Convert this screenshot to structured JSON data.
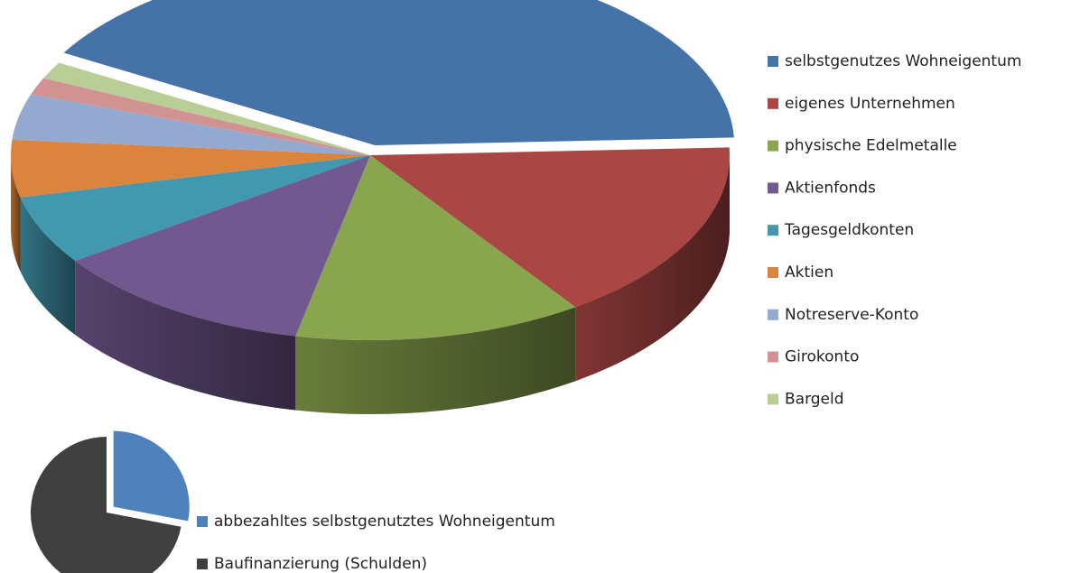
{
  "chart_data": [
    {
      "type": "pie3d",
      "categories": [
        "selbstgenutzes Wohneigentum",
        "eigenes Unternehmen",
        "physische Edelmetalle",
        "Aktienfonds",
        "Tagesgeldkonten",
        "Aktien",
        "Notreserve-Konto",
        "Girokonto",
        "Bargeld"
      ],
      "values": [
        41,
        16,
        13,
        12,
        6,
        5,
        4,
        1.5,
        1.5
      ],
      "colors": [
        "#4572a7",
        "#aa4643",
        "#89a54e",
        "#71588f",
        "#4198af",
        "#db843d",
        "#93a9cf",
        "#d19392",
        "#b9cd96"
      ],
      "legend": "right"
    },
    {
      "type": "pie",
      "categories": [
        "abbezahltes selbstgenutztes  Wohneigentum",
        "Baufinanzierung (Schulden)"
      ],
      "values": [
        28,
        72
      ],
      "colors": [
        "#4f81bd",
        "#404040"
      ],
      "legend": "right"
    }
  ]
}
